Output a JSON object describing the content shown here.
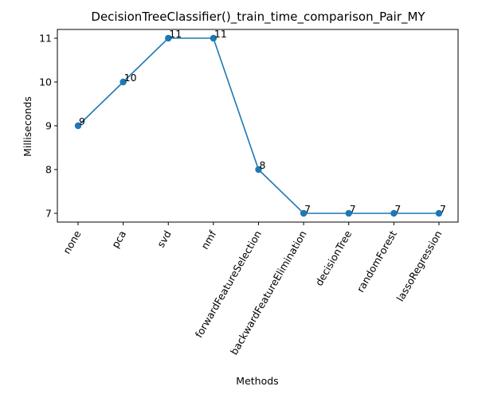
{
  "chart_data": {
    "type": "line",
    "title": "DecisionTreeClassifier()_train_time_comparison_Pair_MY",
    "xlabel": "Methods",
    "ylabel": "Milliseconds",
    "categories": [
      "none",
      "pca",
      "svd",
      "nmf",
      "forwardFeatureSelection",
      "backwardFeatureElimination",
      "decisionTree",
      "randomForest",
      "lassoRegression"
    ],
    "series": [
      {
        "values": [
          9,
          10,
          11,
          11,
          8,
          7,
          7,
          7,
          7
        ]
      }
    ],
    "data_labels": [
      "9",
      "10",
      "11",
      "11",
      "8",
      "7",
      "7",
      "7",
      "7"
    ],
    "ylim": [
      6.8,
      11.2
    ],
    "yticks": [
      7,
      8,
      9,
      10,
      11
    ],
    "grid": false,
    "legend": "none",
    "colors": {
      "line": "#1f77b4",
      "marker": "#1f77b4",
      "axis": "#000000"
    }
  }
}
